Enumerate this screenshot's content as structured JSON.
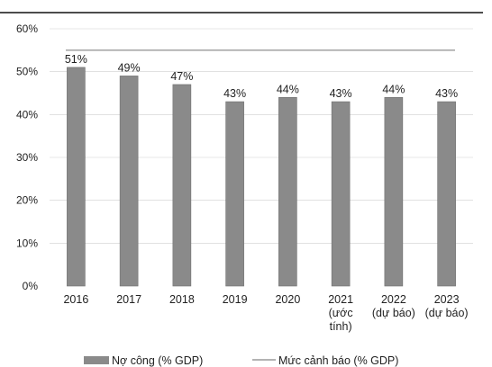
{
  "colors": {
    "bar": "#8a8a8a",
    "bar_edge": "#6f6f6f",
    "warning_line": "#9a9a9a",
    "top_rule": "#111111",
    "grid": "#cfcfcf"
  },
  "chart_data": {
    "type": "bar",
    "categories": [
      [
        "2016"
      ],
      [
        "2017"
      ],
      [
        "2018"
      ],
      [
        "2019"
      ],
      [
        "2020"
      ],
      [
        "2021",
        "(ước",
        "tính)"
      ],
      [
        "2022",
        "(dự báo)"
      ],
      [
        "2023",
        "(dự báo)"
      ]
    ],
    "series": [
      {
        "name": "Nợ công (% GDP)",
        "values": [
          51,
          49,
          47,
          43,
          44,
          43,
          44,
          43
        ],
        "labels": [
          "51%",
          "49%",
          "47%",
          "43%",
          "44%",
          "43%",
          "44%",
          "43%"
        ]
      }
    ],
    "reference_line": {
      "name": "Mức cảnh báo (% GDP)",
      "value": 55
    },
    "ylim": [
      0,
      60
    ],
    "yticks": [
      0,
      10,
      20,
      30,
      40,
      50,
      60
    ],
    "ytick_labels": [
      "0%",
      "10%",
      "20%",
      "30%",
      "40%",
      "50%",
      "60%"
    ],
    "grid": true,
    "legend": "bottom"
  }
}
